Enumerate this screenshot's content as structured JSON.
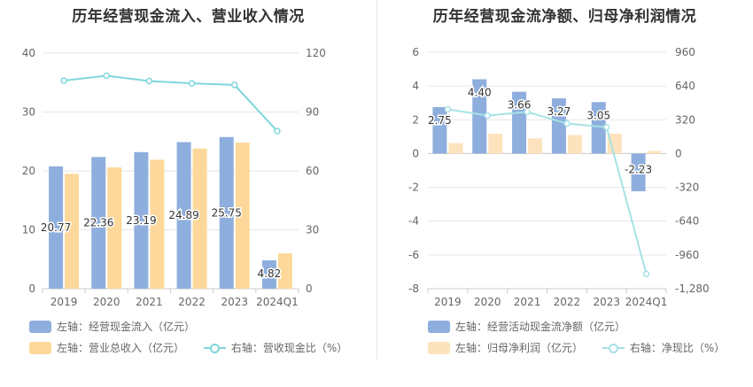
{
  "charts": [
    {
      "title": "历年经营现金流入、营业收入情况",
      "legend": [
        {
          "label": "左轴：经营现金流入（亿元）",
          "type": "bar",
          "color": "#8eaedd"
        },
        {
          "label": "左轴：营业总收入（亿元）",
          "type": "bar",
          "color": "#fdd89a"
        },
        {
          "label": "右轴：营收现金比（%）",
          "type": "line",
          "color": "#7fd6dc"
        }
      ]
    },
    {
      "title": "历年经营现金流净额、归母净利润情况",
      "legend": [
        {
          "label": "左轴：经营活动现金流净额（亿元）",
          "type": "bar",
          "color": "#8eaedd"
        },
        {
          "label": "左轴：归母净利润（亿元）",
          "type": "bar",
          "color": "#fde3bd"
        },
        {
          "label": "右轴：净现比（%）",
          "type": "line",
          "color": "#a6e2e6"
        }
      ]
    }
  ],
  "chart_data": [
    {
      "type": "bar",
      "title": "历年经营现金流入、营业收入情况",
      "categories": [
        "2019",
        "2020",
        "2021",
        "2022",
        "2023",
        "2024Q1"
      ],
      "left_axis": {
        "min": 0,
        "max": 40,
        "ticks": [
          0,
          10,
          20,
          30,
          40
        ]
      },
      "right_axis": {
        "min": 0,
        "max": 120,
        "ticks": [
          0,
          30,
          60,
          90,
          120
        ]
      },
      "grid": true,
      "legend_position": "bottom-left",
      "series": [
        {
          "name": "左轴：经营现金流入（亿元）",
          "type": "bar",
          "axis": "left",
          "color": "#8eaedd",
          "values": [
            20.77,
            22.36,
            23.19,
            24.89,
            25.75,
            4.82
          ],
          "labels": [
            "20.77",
            "22.36",
            "23.19",
            "24.89",
            "25.75",
            "4.82"
          ]
        },
        {
          "name": "左轴：营业总收入（亿元）",
          "type": "bar",
          "axis": "left",
          "color": "#fdd89a",
          "values": [
            19.5,
            20.6,
            21.9,
            23.8,
            24.8,
            6.0
          ]
        },
        {
          "name": "右轴：营收现金比（%）",
          "type": "line",
          "axis": "right",
          "color": "#7fd6dc",
          "values": [
            106.0,
            108.5,
            105.8,
            104.6,
            103.8,
            80.3
          ]
        }
      ]
    },
    {
      "type": "bar",
      "title": "历年经营现金流净额、归母净利润情况",
      "categories": [
        "2019",
        "2020",
        "2021",
        "2022",
        "2023",
        "2024Q1"
      ],
      "left_axis": {
        "min": -8,
        "max": 6,
        "ticks": [
          -8,
          -6,
          -4,
          -2,
          0,
          2,
          4,
          6
        ]
      },
      "right_axis": {
        "min": -1280,
        "max": 960,
        "ticks": [
          -1280,
          -960,
          -640,
          -320,
          0,
          320,
          640,
          960
        ],
        "tick_labels": [
          "-1,280",
          "-960",
          "-640",
          "-320",
          "0",
          "320",
          "640",
          "960"
        ]
      },
      "grid": true,
      "legend_position": "bottom-left",
      "series": [
        {
          "name": "左轴：经营活动现金流净额（亿元）",
          "type": "bar",
          "axis": "left",
          "color": "#8eaedd",
          "values": [
            2.75,
            4.4,
            3.66,
            3.27,
            3.05,
            -2.23
          ],
          "labels": [
            "2.75",
            "4.40",
            "3.66",
            "3.27",
            "3.05",
            "-2.23"
          ]
        },
        {
          "name": "左轴：归母净利润（亿元）",
          "type": "bar",
          "axis": "left",
          "color": "#fde3bd",
          "values": [
            0.62,
            1.18,
            0.9,
            1.1,
            1.18,
            0.16
          ]
        },
        {
          "name": "右轴：净现比（%）",
          "type": "line",
          "axis": "right",
          "color": "#a6e2e6",
          "values": [
            420,
            360,
            395,
            285,
            250,
            -1140
          ]
        }
      ]
    }
  ]
}
